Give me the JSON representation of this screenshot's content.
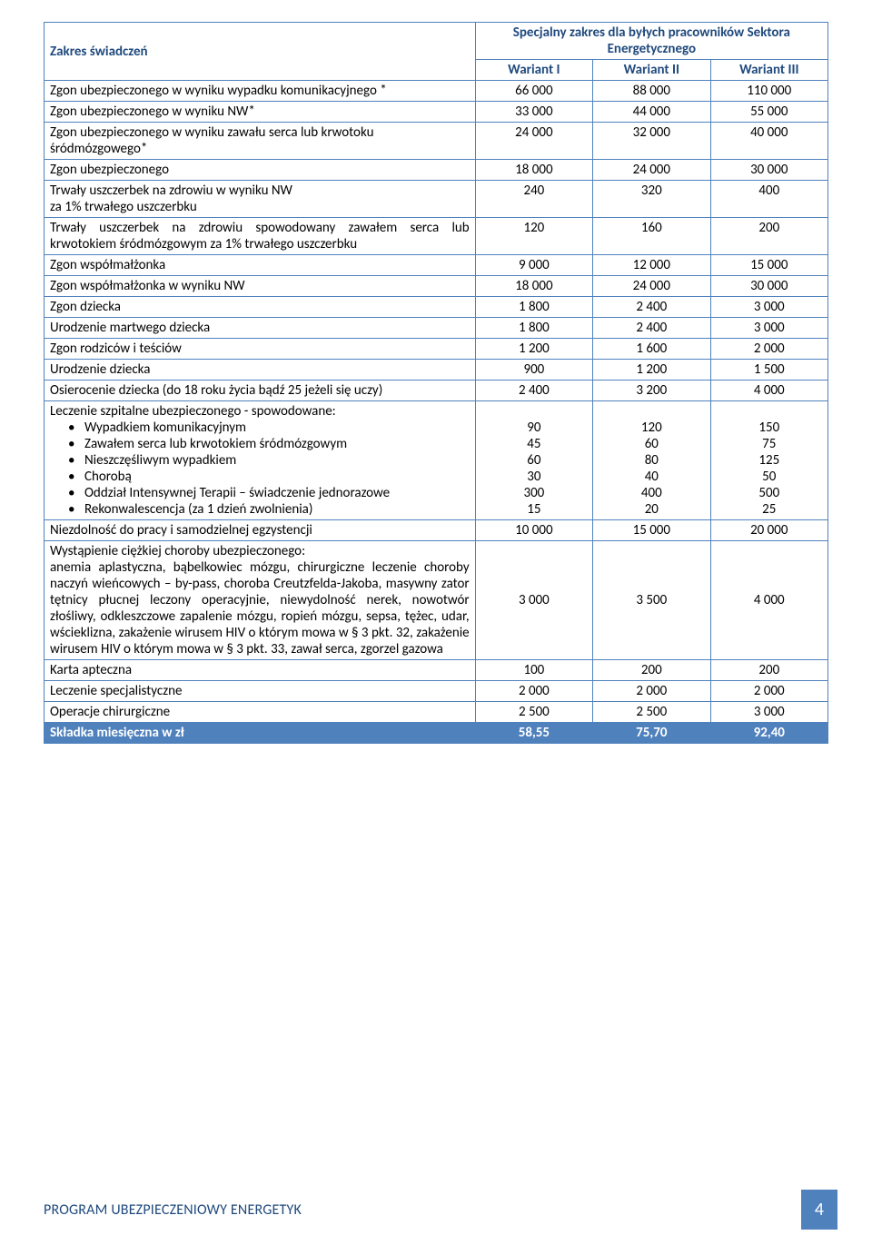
{
  "colors": {
    "brand_border": "#4f81bd",
    "brand_text": "#1f497d",
    "footer_bg": "#4f81bd",
    "footer_text": "#ffffff",
    "body_text": "#000000",
    "page_bg": "#ffffff"
  },
  "header": {
    "scope_label": "Zakres świadczeń",
    "special_scope": "Specjalny zakres dla byłych pracowników Sektora Energetycznego",
    "variant1": "Wariant I",
    "variant2": "Wariant II",
    "variant3": "Wariant III"
  },
  "rows": [
    {
      "label": "Zgon ubezpieczonego w wyniku wypadku komunikacyjnego *",
      "v": [
        "66 000",
        "88 000",
        "110 000"
      ]
    },
    {
      "label": "Zgon ubezpieczonego w wyniku NW*",
      "v": [
        "33 000",
        "44 000",
        "55 000"
      ]
    },
    {
      "label": "Zgon ubezpieczonego w wyniku zawału serca lub krwotoku śródmózgowego*",
      "v": [
        "24 000",
        "32 000",
        "40 000"
      ]
    },
    {
      "label": "Zgon ubezpieczonego",
      "v": [
        "18 000",
        "24 000",
        "30 000"
      ]
    },
    {
      "label": "Trwały uszczerbek na zdrowiu w wyniku NW\nza 1% trwałego uszczerbku",
      "v": [
        "240",
        "320",
        "400"
      ]
    },
    {
      "label": "Trwały uszczerbek na zdrowiu spowodowany zawałem serca lub krwotokiem śródmózgowym za 1% trwałego uszczerbku",
      "v": [
        "120",
        "160",
        "200"
      ]
    },
    {
      "label": "Zgon współmałżonka",
      "v": [
        "9 000",
        "12 000",
        "15 000"
      ]
    },
    {
      "label": "Zgon współmałżonka w wyniku NW",
      "v": [
        "18 000",
        "24 000",
        "30 000"
      ]
    },
    {
      "label": "Zgon dziecka",
      "v": [
        "1 800",
        "2 400",
        "3 000"
      ]
    },
    {
      "label": "Urodzenie martwego dziecka",
      "v": [
        "1 800",
        "2 400",
        "3 000"
      ]
    },
    {
      "label": "Zgon rodziców i teściów",
      "v": [
        "1 200",
        "1 600",
        "2 000"
      ]
    },
    {
      "label": "Urodzenie dziecka",
      "v": [
        "900",
        "1 200",
        "1 500"
      ]
    },
    {
      "label": "Osierocenie dziecka (do 18 roku życia bądź 25 jeżeli się uczy)",
      "v": [
        "2 400",
        "3 200",
        "4 000"
      ]
    }
  ],
  "hospital": {
    "intro": "Leczenie szpitalne ubezpieczonego - spowodowane:",
    "items": [
      "Wypadkiem komunikacyjnym",
      "Zawałem serca lub krwotokiem śródmózgowym",
      "Nieszczęśliwym wypadkiem",
      "Chorobą",
      "Oddział Intensywnej Terapii – świadczenie jednorazowe",
      "Rekonwalescencja (za 1 dzień zwolnienia)"
    ],
    "cols": [
      [
        "",
        "90",
        "45",
        "60",
        "30",
        "300",
        "15"
      ],
      [
        "",
        "120",
        "60",
        "80",
        "40",
        "400",
        "20"
      ],
      [
        "",
        "150",
        "75",
        "125",
        "50",
        "500",
        "25"
      ]
    ]
  },
  "incapacity": {
    "label": "Niezdolność do pracy i samodzielnej egzystencji",
    "v": [
      "10 000",
      "15 000",
      "20 000"
    ]
  },
  "illness": {
    "label": "Wystąpienie ciężkiej choroby ubezpieczonego:\nanemia aplastyczna, bąbelkowiec mózgu, chirurgiczne leczenie choroby naczyń wieńcowych – by-pass, choroba Creutzfelda-Jakoba, masywny zator tętnicy płucnej leczony operacyjnie, niewydolność nerek,  nowotwór złośliwy, odkleszczowe zapalenie mózgu, ropień mózgu, sepsa, tężec, udar, wścieklizna, zakażenie wirusem HIV o którym mowa w § 3 pkt. 32, zakażenie wirusem HIV o którym mowa w § 3 pkt. 33, zawał serca, zgorzel gazowa",
    "v": [
      "3 000",
      "3 500",
      "4 000"
    ]
  },
  "tail": [
    {
      "label": "Karta apteczna",
      "v": [
        "100",
        "200",
        "200"
      ]
    },
    {
      "label": "Leczenie specjalistyczne",
      "v": [
        "2 000",
        "2 000",
        "2 000"
      ]
    },
    {
      "label": "Operacje chirurgiczne",
      "v": [
        "2 500",
        "2 500",
        "3 000"
      ]
    }
  ],
  "footer_row": {
    "label": "Składka miesięczna w zł",
    "v": [
      "58,55",
      "75,70",
      "92,40"
    ]
  },
  "program_footer": "PROGRAM UBEZPIECZENIOWY ENERGETYK",
  "page_number": "4"
}
